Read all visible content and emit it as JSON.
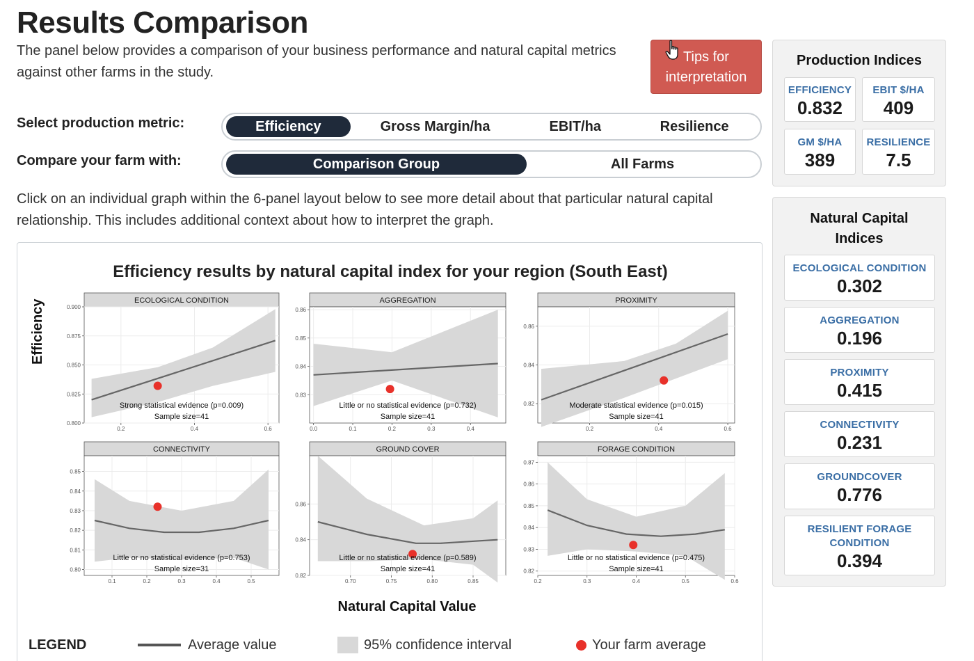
{
  "page": {
    "title": "Results Comparison",
    "intro": "The panel below provides a comparison of your business performance and natural capital metrics against other farms in the study.",
    "tips_button": "Tips for interpretation",
    "metric_label": "Select production metric:",
    "metric_options": [
      "Efficiency",
      "Gross Margin/ha",
      "EBIT/ha",
      "Resilience"
    ],
    "metric_selected": "Efficiency",
    "compare_label": "Compare your farm with:",
    "compare_options": [
      "Comparison Group",
      "All Farms"
    ],
    "compare_selected": "Comparison Group",
    "hint": "Click on an individual graph within the 6-panel layout below to see more detail about that particular natural capital relationship. This includes additional context about how to interpret the graph."
  },
  "panel": {
    "title": "Efficiency results by natural capital index for your region (South East)",
    "y_title": "Efficiency",
    "x_title": "Natural Capital Value",
    "legend": {
      "title": "LEGEND",
      "line": "Average value",
      "band": "95% confidence interval",
      "dot": "Your farm average"
    }
  },
  "colors": {
    "accent_dark": "#1f2a3a",
    "tips_red": "#d05a52",
    "farm_dot": "#e8312a",
    "tile_label": "#3a6ea5",
    "band": "#d8d8d8",
    "line": "#666666"
  },
  "chart_data": [
    {
      "type": "line",
      "title": "ECOLOGICAL CONDITION",
      "xlim": [
        0.1,
        0.63
      ],
      "ylim": [
        0.8,
        0.9
      ],
      "xticks": [
        0.2,
        0.4,
        0.6
      ],
      "yticks": [
        0.8,
        0.825,
        0.85,
        0.875,
        0.9
      ],
      "xtick_labels": [
        "0.2",
        "0.4",
        "0.6"
      ],
      "ytick_labels": [
        "0.800",
        "0.825",
        "0.850",
        "0.875",
        "0.900"
      ],
      "trend": {
        "x": [
          0.12,
          0.62
        ],
        "y": [
          0.82,
          0.871
        ]
      },
      "band_upper": {
        "x": [
          0.12,
          0.3,
          0.45,
          0.62
        ],
        "y": [
          0.838,
          0.848,
          0.865,
          0.898
        ]
      },
      "band_lower": {
        "x": [
          0.12,
          0.3,
          0.45,
          0.62
        ],
        "y": [
          0.805,
          0.818,
          0.832,
          0.844
        ]
      },
      "farm_point": {
        "x": 0.3,
        "y": 0.832
      },
      "note": "Strong statistical evidence (p=0.009)",
      "sample": "Sample size=41"
    },
    {
      "type": "line",
      "title": "AGGREGATION",
      "xlim": [
        -0.01,
        0.49
      ],
      "ylim": [
        0.82,
        0.861
      ],
      "xticks": [
        0.0,
        0.1,
        0.2,
        0.3,
        0.4
      ],
      "yticks": [
        0.83,
        0.84,
        0.85,
        0.86
      ],
      "xtick_labels": [
        "0.0",
        "0.1",
        "0.2",
        "0.3",
        "0.4"
      ],
      "ytick_labels": [
        "0.83",
        "0.84",
        "0.85",
        "0.86"
      ],
      "trend": {
        "x": [
          0.0,
          0.47
        ],
        "y": [
          0.837,
          0.841
        ]
      },
      "band_upper": {
        "x": [
          0.0,
          0.2,
          0.47
        ],
        "y": [
          0.848,
          0.845,
          0.86
        ]
      },
      "band_lower": {
        "x": [
          0.0,
          0.2,
          0.47
        ],
        "y": [
          0.826,
          0.835,
          0.822
        ]
      },
      "farm_point": {
        "x": 0.195,
        "y": 0.832
      },
      "note": "Little or no statistical evidence (p=0.732)",
      "sample": "Sample size=41"
    },
    {
      "type": "line",
      "title": "PROXIMITY",
      "xlim": [
        0.05,
        0.62
      ],
      "ylim": [
        0.81,
        0.87
      ],
      "xticks": [
        0.2,
        0.4,
        0.6
      ],
      "yticks": [
        0.82,
        0.84,
        0.86
      ],
      "xtick_labels": [
        "0.2",
        "0.4",
        "0.6"
      ],
      "ytick_labels": [
        "0.82",
        "0.84",
        "0.86"
      ],
      "trend": {
        "x": [
          0.06,
          0.6
        ],
        "y": [
          0.822,
          0.856
        ]
      },
      "band_upper": {
        "x": [
          0.06,
          0.3,
          0.45,
          0.6
        ],
        "y": [
          0.838,
          0.842,
          0.851,
          0.868
        ]
      },
      "band_lower": {
        "x": [
          0.06,
          0.3,
          0.45,
          0.6
        ],
        "y": [
          0.808,
          0.823,
          0.833,
          0.843
        ]
      },
      "farm_point": {
        "x": 0.415,
        "y": 0.832
      },
      "note": "Moderate statistical evidence (p=0.015)",
      "sample": "Sample size=41"
    },
    {
      "type": "line",
      "title": "CONNECTIVITY",
      "xlim": [
        0.02,
        0.58
      ],
      "ylim": [
        0.797,
        0.858
      ],
      "xticks": [
        0.1,
        0.2,
        0.3,
        0.4,
        0.5
      ],
      "yticks": [
        0.8,
        0.81,
        0.82,
        0.83,
        0.84,
        0.85
      ],
      "xtick_labels": [
        "0.1",
        "0.2",
        "0.3",
        "0.4",
        "0.5"
      ],
      "ytick_labels": [
        "0.80",
        "0.81",
        "0.82",
        "0.83",
        "0.84",
        "0.85"
      ],
      "trend": {
        "x": [
          0.05,
          0.15,
          0.25,
          0.3,
          0.35,
          0.45,
          0.55
        ],
        "y": [
          0.825,
          0.821,
          0.819,
          0.819,
          0.819,
          0.821,
          0.825
        ]
      },
      "band_upper": {
        "x": [
          0.05,
          0.15,
          0.3,
          0.45,
          0.55
        ],
        "y": [
          0.846,
          0.835,
          0.83,
          0.835,
          0.851
        ]
      },
      "band_lower": {
        "x": [
          0.05,
          0.15,
          0.3,
          0.45,
          0.55
        ],
        "y": [
          0.804,
          0.806,
          0.805,
          0.806,
          0.8
        ]
      },
      "farm_point": {
        "x": 0.231,
        "y": 0.832
      },
      "note": "Little or no statistical evidence (p=0.753)",
      "sample": "Sample size=31"
    },
    {
      "type": "line",
      "title": "GROUND COVER",
      "xlim": [
        0.65,
        0.89
      ],
      "ylim": [
        0.82,
        0.887
      ],
      "xticks": [
        0.7,
        0.75,
        0.8,
        0.85
      ],
      "yticks": [
        0.82,
        0.84,
        0.86
      ],
      "xtick_labels": [
        "0.70",
        "0.75",
        "0.80",
        "0.85"
      ],
      "ytick_labels": [
        "0.82",
        "0.84",
        "0.86"
      ],
      "trend": {
        "x": [
          0.66,
          0.72,
          0.78,
          0.81,
          0.88
        ],
        "y": [
          0.85,
          0.843,
          0.838,
          0.838,
          0.84
        ]
      },
      "band_upper": {
        "x": [
          0.66,
          0.72,
          0.79,
          0.85,
          0.88
        ],
        "y": [
          0.887,
          0.863,
          0.848,
          0.852,
          0.862
        ]
      },
      "band_lower": {
        "x": [
          0.66,
          0.72,
          0.79,
          0.85,
          0.88
        ],
        "y": [
          0.828,
          0.828,
          0.829,
          0.826,
          0.816
        ]
      },
      "farm_point": {
        "x": 0.776,
        "y": 0.832
      },
      "note": "Little or no statistical evidence (p=0.589)",
      "sample": "Sample size=41"
    },
    {
      "type": "line",
      "title": "FORAGE CONDITION",
      "xlim": [
        0.2,
        0.6
      ],
      "ylim": [
        0.818,
        0.873
      ],
      "xticks": [
        0.2,
        0.3,
        0.4,
        0.5,
        0.6
      ],
      "yticks": [
        0.82,
        0.83,
        0.84,
        0.85,
        0.86,
        0.87
      ],
      "xtick_labels": [
        "0.2",
        "0.3",
        "0.4",
        "0.5",
        "0.6"
      ],
      "ytick_labels": [
        "0.82",
        "0.83",
        "0.84",
        "0.85",
        "0.86",
        "0.87"
      ],
      "trend": {
        "x": [
          0.22,
          0.3,
          0.38,
          0.45,
          0.52,
          0.58
        ],
        "y": [
          0.848,
          0.841,
          0.837,
          0.836,
          0.837,
          0.839
        ]
      },
      "band_upper": {
        "x": [
          0.22,
          0.3,
          0.4,
          0.5,
          0.58
        ],
        "y": [
          0.87,
          0.853,
          0.845,
          0.85,
          0.865
        ]
      },
      "band_lower": {
        "x": [
          0.22,
          0.3,
          0.4,
          0.5,
          0.58
        ],
        "y": [
          0.827,
          0.83,
          0.829,
          0.827,
          0.816
        ]
      },
      "farm_point": {
        "x": 0.394,
        "y": 0.832
      },
      "note": "Little or no statistical evidence (p=0.475)",
      "sample": "Sample size=41"
    }
  ],
  "production_indices": {
    "title": "Production Indices",
    "tiles": [
      {
        "label": "EFFICIENCY",
        "value": "0.832"
      },
      {
        "label": "EBIT $/HA",
        "value": "409"
      },
      {
        "label": "GM $/HA",
        "value": "389"
      },
      {
        "label": "RESILIENCE",
        "value": "7.5"
      }
    ]
  },
  "natural_capital_indices": {
    "title": "Natural Capital Indices",
    "tiles": [
      {
        "label": "ECOLOGICAL CONDITION",
        "value": "0.302"
      },
      {
        "label": "AGGREGATION",
        "value": "0.196"
      },
      {
        "label": "PROXIMITY",
        "value": "0.415"
      },
      {
        "label": "CONNECTIVITY",
        "value": "0.231"
      },
      {
        "label": "GROUNDCOVER",
        "value": "0.776"
      },
      {
        "label": "RESILIENT FORAGE CONDITION",
        "value": "0.394"
      }
    ]
  }
}
